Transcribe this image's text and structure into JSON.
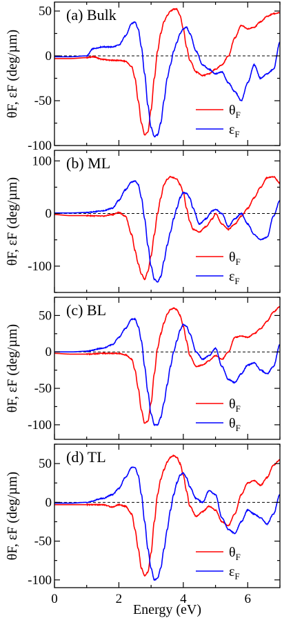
{
  "chart_data": [
    {
      "type": "line",
      "title": "(a) Bulk",
      "xlabel": "",
      "ylabel": "θF, εF (deg/µm)",
      "xlim": [
        0,
        7
      ],
      "ylim": [
        -100,
        60
      ],
      "yticks": [
        -100,
        -50,
        0,
        50
      ],
      "xticks": [
        0,
        2,
        4,
        6
      ],
      "grid": false,
      "legend_position": "bottom-right",
      "series": [
        {
          "name": "θF",
          "label_main": "θ",
          "label_sub": "F",
          "color": "#ff0000",
          "x": [
            0,
            0.5,
            1.0,
            1.2,
            1.5,
            1.8,
            2.0,
            2.2,
            2.4,
            2.5,
            2.6,
            2.7,
            2.8,
            2.9,
            3.0,
            3.1,
            3.2,
            3.3,
            3.4,
            3.5,
            3.6,
            3.7,
            3.8,
            3.9,
            4.0,
            4.1,
            4.2,
            4.4,
            4.6,
            4.8,
            5.0,
            5.2,
            5.4,
            5.6,
            5.8,
            6.0,
            6.2,
            6.4,
            6.6,
            6.8,
            7.0
          ],
          "y": [
            -3,
            -3,
            -2,
            -1,
            -4,
            -5,
            -5,
            -6,
            -12,
            -25,
            -50,
            -75,
            -88,
            -85,
            -60,
            -25,
            5,
            25,
            38,
            45,
            50,
            52,
            52,
            45,
            30,
            10,
            -5,
            -18,
            -22,
            -20,
            -15,
            -10,
            0,
            20,
            34,
            30,
            32,
            38,
            44,
            47,
            48
          ]
        },
        {
          "name": "εF",
          "label_main": "ε",
          "label_sub": "F",
          "color": "#0000ff",
          "x": [
            0,
            0.5,
            1.0,
            1.2,
            1.5,
            1.8,
            2.0,
            2.2,
            2.4,
            2.5,
            2.6,
            2.7,
            2.8,
            2.9,
            3.0,
            3.1,
            3.2,
            3.3,
            3.4,
            3.5,
            3.6,
            3.7,
            3.8,
            3.9,
            4.0,
            4.1,
            4.2,
            4.4,
            4.6,
            4.8,
            5.0,
            5.2,
            5.4,
            5.6,
            5.8,
            6.0,
            6.2,
            6.4,
            6.6,
            6.8,
            7.0
          ],
          "y": [
            -1,
            -1,
            0,
            8,
            10,
            10,
            12,
            22,
            36,
            38,
            30,
            10,
            -20,
            -55,
            -80,
            -90,
            -88,
            -75,
            -50,
            -25,
            -10,
            5,
            15,
            25,
            30,
            32,
            25,
            5,
            -10,
            -15,
            -20,
            -18,
            -30,
            -40,
            -50,
            -30,
            -10,
            -25,
            -20,
            -15,
            15
          ]
        }
      ]
    },
    {
      "type": "line",
      "title": "(b) ML",
      "xlabel": "",
      "ylabel": "θF, εF (deg/µm)",
      "xlim": [
        0,
        7
      ],
      "ylim": [
        -150,
        120
      ],
      "yticks": [
        -100,
        0,
        100
      ],
      "xticks": [
        0,
        2,
        4,
        6
      ],
      "grid": false,
      "legend_position": "bottom-right",
      "series": [
        {
          "name": "θF",
          "label_main": "θ",
          "label_sub": "F",
          "color": "#ff0000",
          "x": [
            0,
            0.5,
            1.0,
            1.5,
            1.8,
            2.0,
            2.2,
            2.4,
            2.5,
            2.6,
            2.7,
            2.8,
            2.9,
            3.0,
            3.1,
            3.2,
            3.3,
            3.4,
            3.5,
            3.6,
            3.7,
            3.8,
            3.9,
            4.0,
            4.1,
            4.2,
            4.3,
            4.5,
            4.7,
            4.9,
            5.0,
            5.2,
            5.4,
            5.6,
            5.8,
            6.0,
            6.2,
            6.4,
            6.6,
            6.8,
            7.0
          ],
          "y": [
            -2,
            -4,
            -4,
            -5,
            -2,
            2,
            -5,
            -40,
            -70,
            -95,
            -115,
            -125,
            -110,
            -80,
            -40,
            0,
            30,
            55,
            65,
            70,
            68,
            65,
            55,
            40,
            10,
            -15,
            -30,
            -35,
            -25,
            -10,
            0,
            -20,
            -30,
            -20,
            -5,
            10,
            30,
            50,
            68,
            70,
            58
          ]
        },
        {
          "name": "εF",
          "label_main": "ε",
          "label_sub": "F",
          "color": "#0000ff",
          "x": [
            0,
            0.5,
            1.0,
            1.5,
            1.8,
            2.0,
            2.2,
            2.4,
            2.5,
            2.6,
            2.7,
            2.8,
            2.9,
            3.0,
            3.1,
            3.2,
            3.3,
            3.4,
            3.5,
            3.6,
            3.7,
            3.8,
            3.9,
            4.0,
            4.1,
            4.2,
            4.3,
            4.5,
            4.7,
            4.9,
            5.0,
            5.2,
            5.4,
            5.6,
            5.8,
            6.0,
            6.2,
            6.4,
            6.6,
            6.8,
            7.0
          ],
          "y": [
            1,
            1,
            2,
            5,
            10,
            25,
            45,
            60,
            62,
            55,
            30,
            -10,
            -60,
            -100,
            -125,
            -130,
            -120,
            -90,
            -60,
            -35,
            -10,
            10,
            30,
            40,
            38,
            30,
            10,
            -20,
            -10,
            5,
            8,
            0,
            -25,
            -10,
            0,
            -20,
            -40,
            -50,
            -45,
            -5,
            25
          ]
        }
      ]
    },
    {
      "type": "line",
      "title": "(c) BL",
      "xlabel": "",
      "ylabel": "θF, εF (deg/µm)",
      "xlim": [
        0,
        7
      ],
      "ylim": [
        -120,
        75
      ],
      "yticks": [
        -100,
        -50,
        0,
        50
      ],
      "xticks": [
        0,
        2,
        4,
        6
      ],
      "grid": false,
      "legend_position": "bottom-right",
      "series": [
        {
          "name": "θF",
          "label_main": "θ",
          "label_sub": "F",
          "color": "#ff0000",
          "x": [
            0,
            0.5,
            1.0,
            1.5,
            1.8,
            2.0,
            2.2,
            2.4,
            2.5,
            2.6,
            2.7,
            2.8,
            2.9,
            3.0,
            3.1,
            3.2,
            3.3,
            3.4,
            3.5,
            3.6,
            3.7,
            3.8,
            3.9,
            4.0,
            4.1,
            4.2,
            4.4,
            4.6,
            4.8,
            5.0,
            5.2,
            5.4,
            5.6,
            5.8,
            6.0,
            6.2,
            6.4,
            6.6,
            6.8,
            7.0
          ],
          "y": [
            -2,
            -3,
            -3,
            -2,
            -2,
            -2,
            -4,
            -10,
            -25,
            -50,
            -80,
            -98,
            -95,
            -70,
            -30,
            5,
            25,
            40,
            52,
            58,
            60,
            58,
            50,
            35,
            15,
            -5,
            -20,
            -18,
            -12,
            -5,
            -10,
            0,
            20,
            22,
            20,
            25,
            32,
            42,
            55,
            62
          ]
        },
        {
          "name": "θF",
          "label_main": "θ",
          "label_sub": "F",
          "color": "#0000ff",
          "x": [
            0,
            0.5,
            1.0,
            1.5,
            1.8,
            2.0,
            2.2,
            2.4,
            2.5,
            2.6,
            2.7,
            2.8,
            2.9,
            3.0,
            3.1,
            3.2,
            3.3,
            3.4,
            3.5,
            3.6,
            3.7,
            3.8,
            3.9,
            4.0,
            4.1,
            4.2,
            4.4,
            4.6,
            4.8,
            5.0,
            5.2,
            5.4,
            5.6,
            5.8,
            6.0,
            6.2,
            6.4,
            6.6,
            6.8,
            7.0
          ],
          "y": [
            0,
            0,
            1,
            5,
            10,
            20,
            32,
            45,
            45,
            35,
            15,
            -20,
            -55,
            -85,
            -100,
            -100,
            -90,
            -70,
            -45,
            -20,
            0,
            15,
            30,
            38,
            35,
            25,
            0,
            -10,
            -5,
            5,
            -20,
            -38,
            -42,
            -30,
            -18,
            -15,
            -25,
            -30,
            -20,
            10
          ]
        }
      ]
    },
    {
      "type": "line",
      "title": "(d) TL",
      "xlabel": "Energy (eV)",
      "ylabel": "θF, εF (deg/µm)",
      "xlim": [
        0,
        7
      ],
      "ylim": [
        -110,
        75
      ],
      "yticks": [
        -100,
        -50,
        0,
        50
      ],
      "xticks": [
        0,
        2,
        4,
        6
      ],
      "grid": false,
      "legend_position": "bottom-right",
      "series": [
        {
          "name": "θF",
          "label_main": "θ",
          "label_sub": "F",
          "color": "#ff0000",
          "x": [
            0,
            0.5,
            1.0,
            1.5,
            1.8,
            2.0,
            2.2,
            2.4,
            2.5,
            2.6,
            2.7,
            2.8,
            2.9,
            3.0,
            3.1,
            3.2,
            3.3,
            3.4,
            3.5,
            3.6,
            3.7,
            3.8,
            3.9,
            4.0,
            4.1,
            4.2,
            4.4,
            4.6,
            4.8,
            5.0,
            5.2,
            5.4,
            5.6,
            5.8,
            6.0,
            6.2,
            6.4,
            6.6,
            6.8,
            7.0
          ],
          "y": [
            -3,
            -3,
            -3,
            -3,
            -6,
            -3,
            -5,
            -15,
            -35,
            -60,
            -85,
            -95,
            -90,
            -65,
            -25,
            10,
            30,
            42,
            52,
            58,
            60,
            58,
            50,
            35,
            15,
            -5,
            -18,
            -12,
            -5,
            -10,
            -25,
            -30,
            -15,
            10,
            25,
            28,
            22,
            32,
            48,
            55
          ]
        },
        {
          "name": "εF",
          "label_main": "ε",
          "label_sub": "F",
          "color": "#0000ff",
          "x": [
            0,
            0.5,
            1.0,
            1.5,
            1.8,
            2.0,
            2.2,
            2.4,
            2.5,
            2.6,
            2.7,
            2.8,
            2.9,
            3.0,
            3.1,
            3.2,
            3.3,
            3.4,
            3.5,
            3.6,
            3.7,
            3.8,
            3.9,
            4.0,
            4.1,
            4.2,
            4.4,
            4.6,
            4.8,
            5.0,
            5.2,
            5.4,
            5.6,
            5.8,
            6.0,
            6.2,
            6.4,
            6.6,
            6.8,
            7.0
          ],
          "y": [
            -1,
            -1,
            0,
            5,
            10,
            18,
            32,
            45,
            45,
            35,
            10,
            -25,
            -60,
            -85,
            -100,
            -98,
            -85,
            -60,
            -35,
            -10,
            10,
            25,
            35,
            38,
            32,
            20,
            5,
            0,
            15,
            10,
            -20,
            -35,
            -40,
            -25,
            -10,
            -15,
            -20,
            -28,
            -15,
            10
          ]
        }
      ]
    }
  ]
}
